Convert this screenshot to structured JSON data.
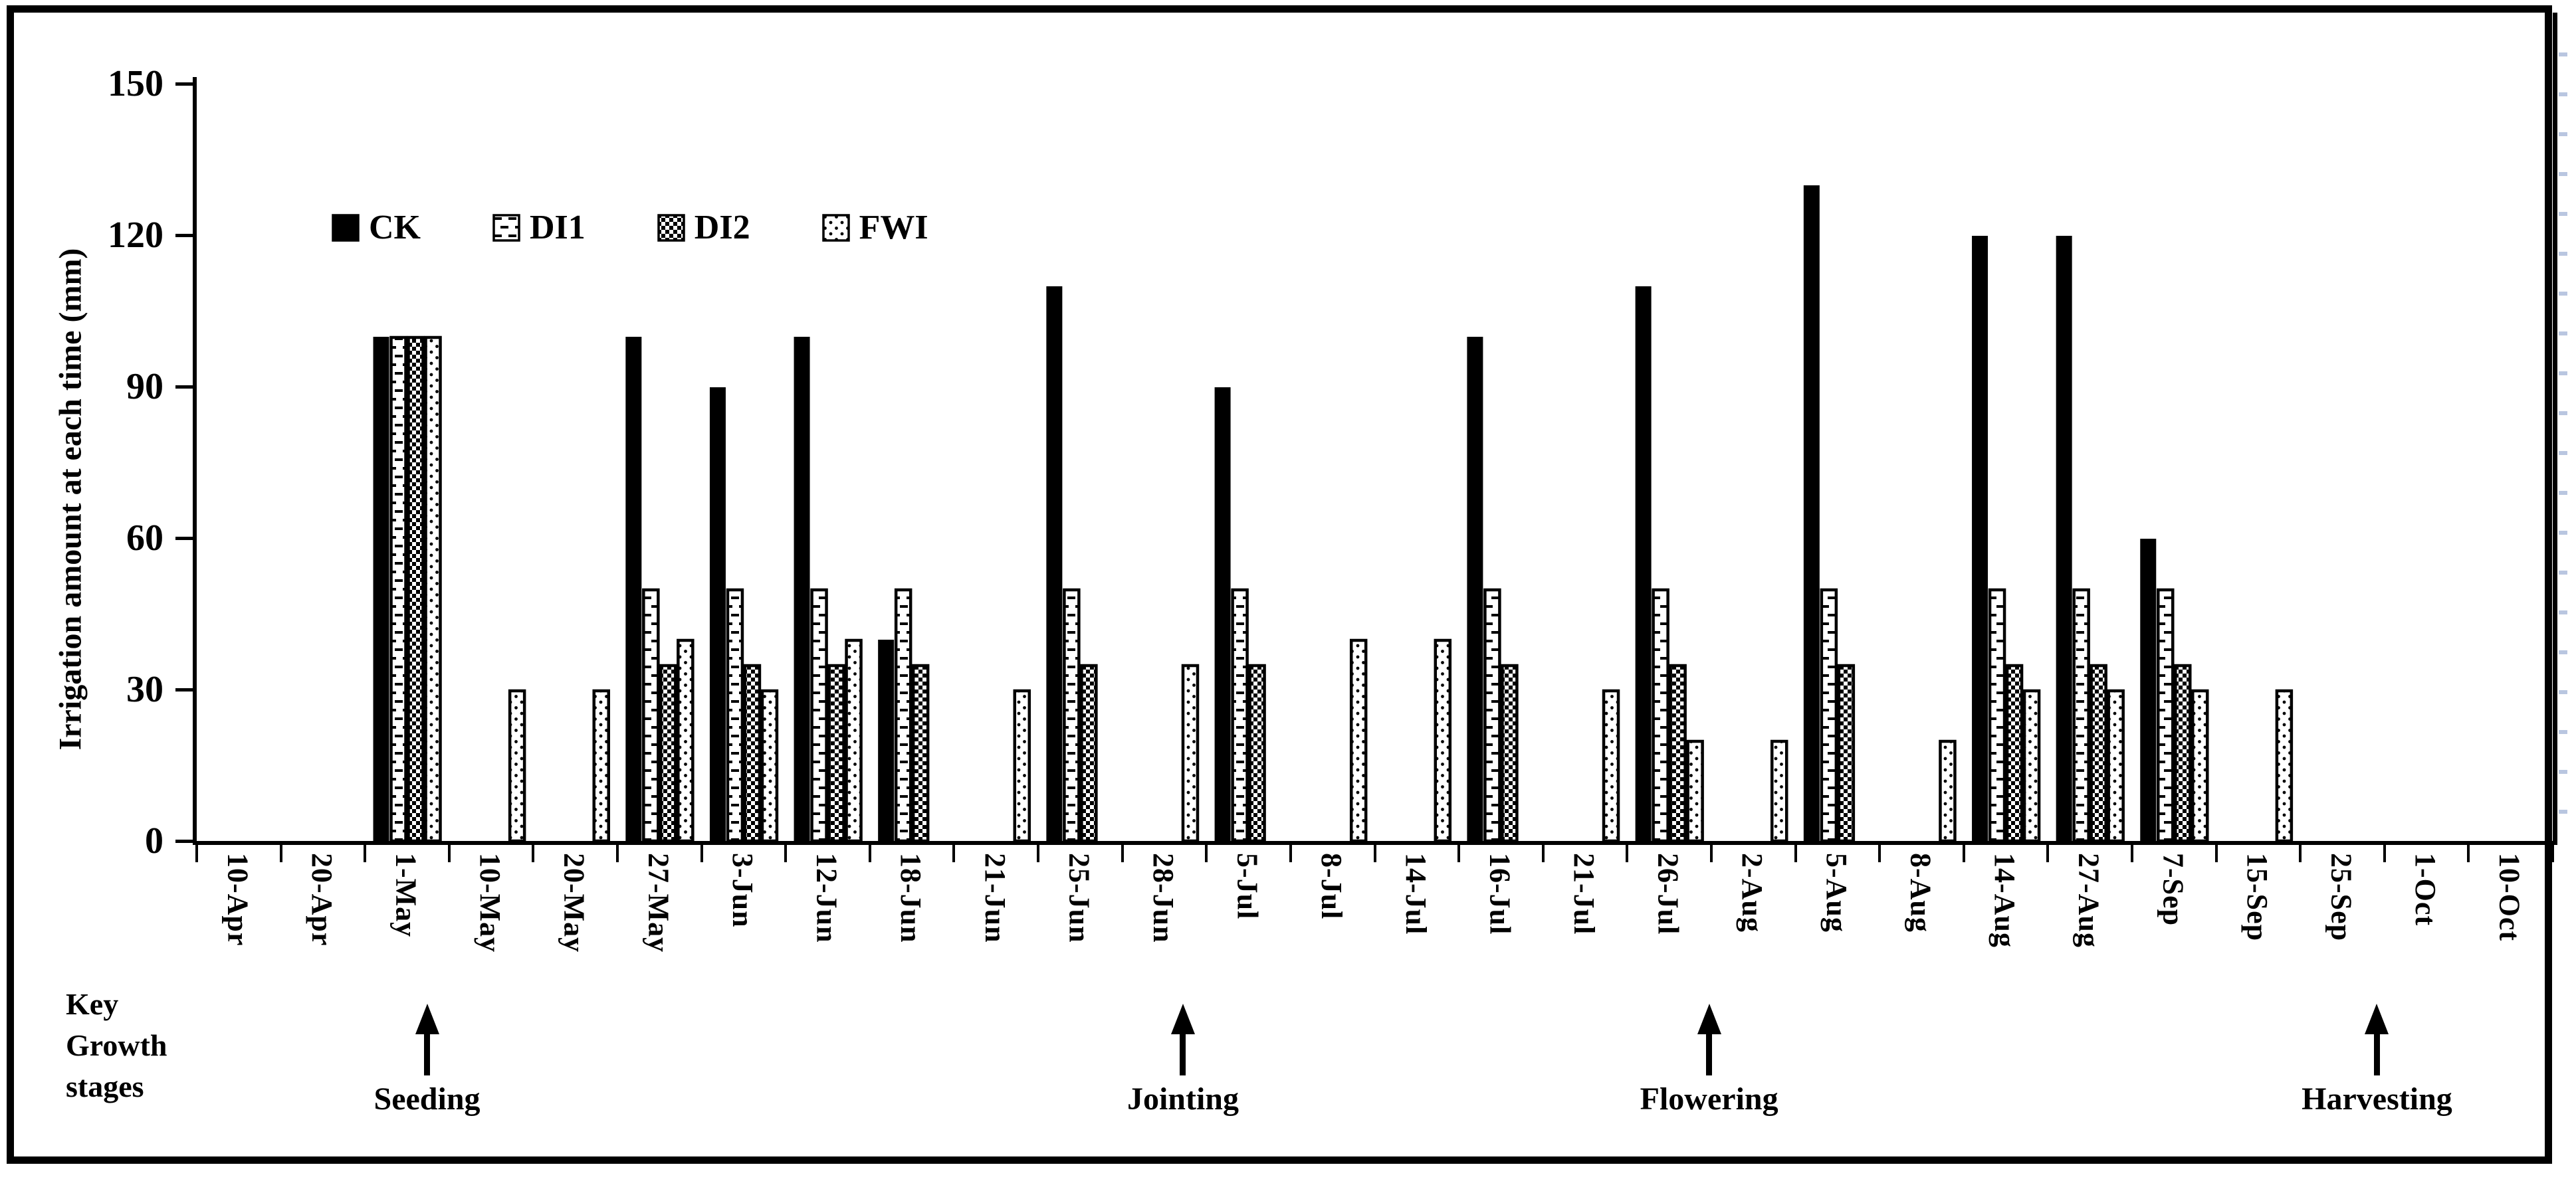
{
  "figure": {
    "background": "#ffffff",
    "frame_color": "#000000",
    "bar_fill_color": "#000000",
    "pattern_background": "#ffffff"
  },
  "chart_data": {
    "type": "bar",
    "title": "",
    "xlabel": "",
    "ylabel": "Irrigation amount at each time (mm)",
    "ylim": [
      0,
      150
    ],
    "yticks": [
      0,
      30,
      60,
      90,
      120,
      150
    ],
    "grid": false,
    "legend_position": "top-left-inside",
    "categories": [
      "10-Apr",
      "20-Apr",
      "1-May",
      "10-May",
      "20-May",
      "27-May",
      "3-Jun",
      "12-Jun",
      "18-Jun",
      "21-Jun",
      "25-Jun",
      "28-Jun",
      "5-Jul",
      "8-Jul",
      "14-Jul",
      "16-Jul",
      "21-Jul",
      "26-Jul",
      "2-Aug",
      "5-Aug",
      "8-Aug",
      "14-Aug",
      "27-Aug",
      "7-Sep",
      "15-Sep",
      "25-Sep",
      "1-Oct",
      "10-Oct"
    ],
    "series": [
      {
        "name": "CK",
        "pattern": "solid",
        "values": [
          null,
          null,
          100,
          null,
          null,
          100,
          90,
          100,
          40,
          null,
          110,
          null,
          90,
          null,
          null,
          100,
          null,
          110,
          null,
          130,
          null,
          120,
          120,
          60,
          null,
          null,
          null,
          null
        ]
      },
      {
        "name": "DI1",
        "pattern": "dash",
        "values": [
          null,
          null,
          100,
          null,
          null,
          50,
          50,
          50,
          50,
          null,
          50,
          null,
          50,
          null,
          null,
          50,
          null,
          50,
          null,
          50,
          null,
          50,
          50,
          50,
          null,
          null,
          null,
          null
        ]
      },
      {
        "name": "DI2",
        "pattern": "checker",
        "values": [
          null,
          null,
          100,
          null,
          null,
          35,
          35,
          35,
          35,
          null,
          35,
          null,
          35,
          null,
          null,
          35,
          null,
          35,
          null,
          35,
          null,
          35,
          35,
          35,
          null,
          null,
          null,
          null
        ]
      },
      {
        "name": "FWI",
        "pattern": "dot",
        "values": [
          null,
          null,
          100,
          30,
          30,
          40,
          30,
          40,
          null,
          30,
          null,
          35,
          null,
          40,
          40,
          null,
          30,
          20,
          20,
          null,
          20,
          30,
          30,
          30,
          30,
          null,
          null,
          null
        ]
      }
    ]
  },
  "annotations": {
    "key_growth_stages": {
      "line1": "Key",
      "line2": "Growth",
      "line3": "stages"
    },
    "growth_stages": [
      {
        "label": "Seeding",
        "date": "1-May"
      },
      {
        "label": "Jointing",
        "date": "28-Jun"
      },
      {
        "label": "Flowering",
        "date": "26-Jul"
      },
      {
        "label": "Harvesting",
        "date": "25-Sep"
      }
    ]
  }
}
